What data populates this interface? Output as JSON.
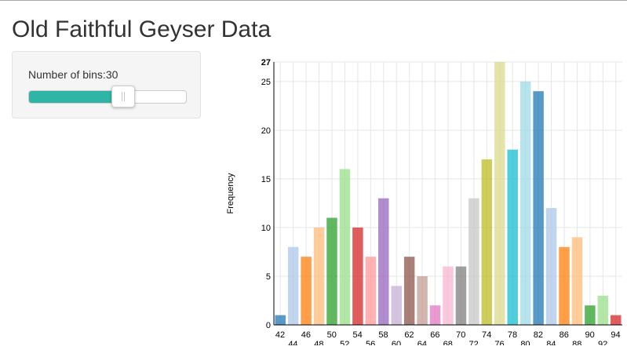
{
  "page": {
    "title": "Old Faithful Geyser Data"
  },
  "slider": {
    "label": "Number of bins:",
    "value": "30",
    "fraction": 0.6
  },
  "chart_data": {
    "type": "bar",
    "xlabel": "",
    "ylabel": "Frequency",
    "ylim": [
      0,
      27
    ],
    "grid": true,
    "categories": [
      "42",
      "44",
      "46",
      "48",
      "50",
      "52",
      "54",
      "56",
      "58",
      "60",
      "62",
      "64",
      "66",
      "68",
      "70",
      "72",
      "74",
      "76",
      "78",
      "80",
      "82",
      "84",
      "86",
      "88",
      "90",
      "92",
      "94"
    ],
    "values": [
      1,
      8,
      7,
      10,
      11,
      16,
      10,
      7,
      13,
      4,
      7,
      5,
      2,
      6,
      6,
      13,
      17,
      27,
      18,
      25,
      24,
      12,
      8,
      9,
      2,
      3,
      1
    ],
    "yticks": [
      "0",
      "5",
      "10",
      "15",
      "20",
      "25",
      "27"
    ],
    "colors": [
      "#1f77b4",
      "#aec7e8",
      "#ff7f0e",
      "#ffbb78",
      "#2ca02c",
      "#98df8a",
      "#d62728",
      "#ff9896",
      "#9467bd",
      "#c5b0d5",
      "#8c564b",
      "#c49c94",
      "#e377c2",
      "#f7b6d2",
      "#7f7f7f",
      "#c7c7c7",
      "#bcbd22",
      "#dbdb8d",
      "#17becf",
      "#9edae5",
      "#1f77b4",
      "#aec7e8",
      "#ff7f0e",
      "#ffbb78",
      "#2ca02c",
      "#98df8a",
      "#d62728"
    ]
  }
}
